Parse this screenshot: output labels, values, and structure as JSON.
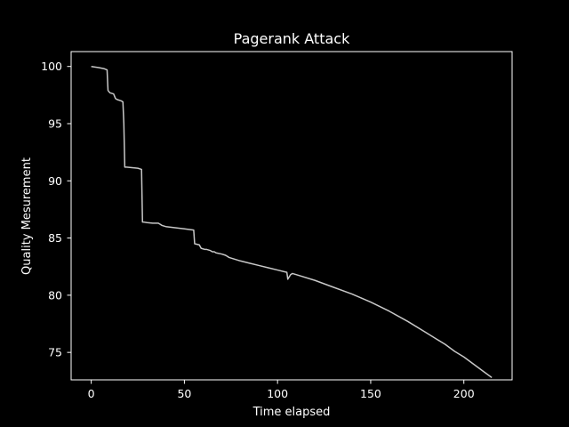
{
  "chart_data": {
    "type": "line",
    "title": "Pagerank Attack",
    "xlabel": "Time elapsed",
    "ylabel": "Quality Mesurement",
    "xlim": [
      -10.8,
      225.9
    ],
    "ylim": [
      72.6,
      101.3
    ],
    "xticks": [
      0,
      50,
      100,
      150,
      200
    ],
    "yticks": [
      75,
      80,
      85,
      90,
      95,
      100
    ],
    "grid": false,
    "legend": "none",
    "colors": {
      "background": "#000000",
      "axes": "#ffffff",
      "line": "#c8c8c8",
      "text": "#ffffff"
    },
    "series": [
      {
        "x": [
          0,
          4,
          7,
          8.5,
          9,
          10,
          12,
          13,
          14,
          16,
          17,
          17.5,
          18,
          19,
          22,
          25,
          27,
          27.5,
          28,
          30,
          33,
          36,
          37,
          38,
          40,
          45,
          50,
          55,
          55.5,
          58,
          59,
          61,
          62,
          64,
          65,
          66,
          67,
          70,
          72,
          74,
          80,
          85,
          90,
          95,
          100,
          105,
          105.5,
          107,
          108,
          110,
          120,
          130,
          140,
          150,
          160,
          170,
          180,
          185,
          190,
          195,
          200,
          205,
          210,
          215
        ],
        "y": [
          100,
          99.9,
          99.8,
          99.7,
          97.9,
          97.7,
          97.6,
          97.2,
          97.1,
          97,
          96.9,
          95,
          91.2,
          91.2,
          91.15,
          91.1,
          91,
          86.4,
          86.4,
          86.35,
          86.3,
          86.3,
          86.2,
          86.1,
          86,
          85.9,
          85.8,
          85.7,
          84.5,
          84.4,
          84.1,
          84,
          84,
          83.9,
          83.8,
          83.8,
          83.7,
          83.6,
          83.5,
          83.3,
          83,
          82.8,
          82.6,
          82.4,
          82.2,
          82,
          81.4,
          81.8,
          81.9,
          81.8,
          81.3,
          80.7,
          80.1,
          79.4,
          78.6,
          77.7,
          76.7,
          76.2,
          75.7,
          75.1,
          74.6,
          74,
          73.4,
          72.8
        ]
      }
    ]
  }
}
